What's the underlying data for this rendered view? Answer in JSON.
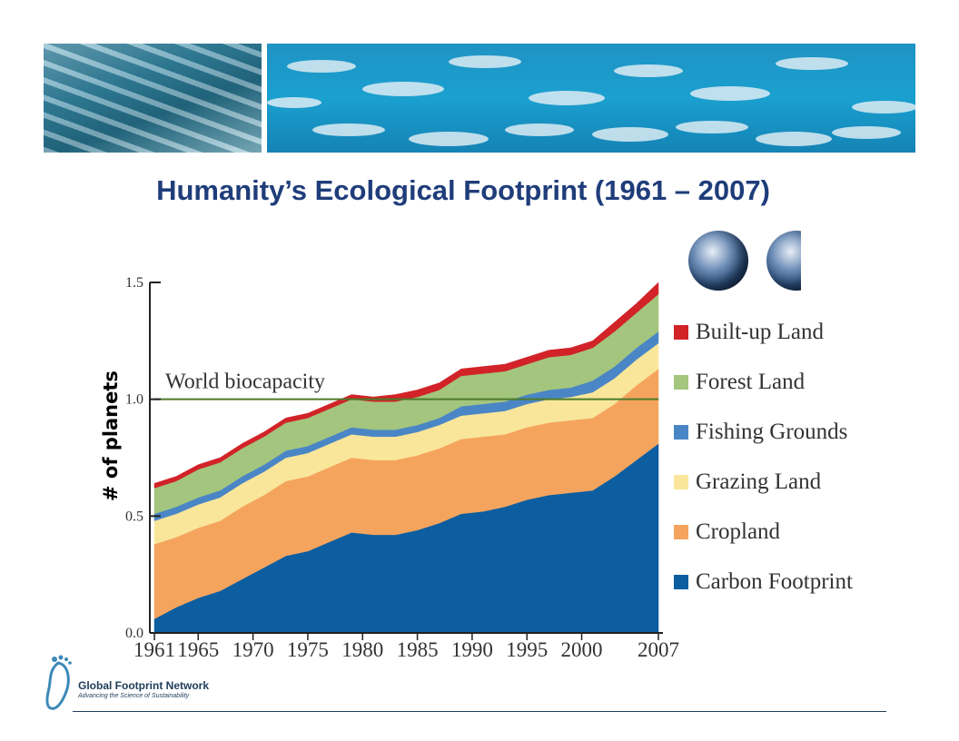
{
  "title": "Humanity’s Ecological Footprint (1961 – 2007)",
  "ylabel": "# of planets",
  "logo": {
    "name": "Global Footprint Network",
    "tagline": "Advancing the Science of Sustainability"
  },
  "chart_data": {
    "type": "area",
    "stacked": true,
    "years": [
      1961,
      1963,
      1965,
      1967,
      1969,
      1971,
      1973,
      1975,
      1977,
      1979,
      1981,
      1983,
      1985,
      1987,
      1989,
      1991,
      1993,
      1995,
      1997,
      1999,
      2001,
      2003,
      2005,
      2007
    ],
    "series": [
      {
        "name": "Carbon Footprint",
        "color": "#0c5ea0",
        "values": [
          0.06,
          0.11,
          0.15,
          0.18,
          0.23,
          0.28,
          0.33,
          0.35,
          0.39,
          0.43,
          0.42,
          0.42,
          0.44,
          0.47,
          0.51,
          0.52,
          0.54,
          0.57,
          0.59,
          0.6,
          0.61,
          0.67,
          0.74,
          0.81
        ]
      },
      {
        "name": "Cropland",
        "color": "#f5a45e",
        "values": [
          0.32,
          0.3,
          0.3,
          0.3,
          0.31,
          0.31,
          0.32,
          0.32,
          0.32,
          0.32,
          0.32,
          0.32,
          0.32,
          0.32,
          0.32,
          0.32,
          0.31,
          0.31,
          0.31,
          0.31,
          0.31,
          0.31,
          0.32,
          0.32
        ]
      },
      {
        "name": "Grazing Land",
        "color": "#f9e69a",
        "values": [
          0.1,
          0.1,
          0.1,
          0.1,
          0.1,
          0.1,
          0.1,
          0.1,
          0.1,
          0.1,
          0.1,
          0.1,
          0.1,
          0.1,
          0.1,
          0.1,
          0.1,
          0.1,
          0.1,
          0.1,
          0.11,
          0.11,
          0.11,
          0.11
        ]
      },
      {
        "name": "Fishing Grounds",
        "color": "#4a86c5",
        "values": [
          0.03,
          0.03,
          0.03,
          0.03,
          0.03,
          0.03,
          0.03,
          0.03,
          0.03,
          0.03,
          0.03,
          0.03,
          0.03,
          0.03,
          0.04,
          0.04,
          0.04,
          0.04,
          0.04,
          0.04,
          0.05,
          0.05,
          0.05,
          0.05
        ]
      },
      {
        "name": "Forest Land",
        "color": "#a3c57e",
        "values": [
          0.11,
          0.11,
          0.12,
          0.12,
          0.12,
          0.12,
          0.12,
          0.12,
          0.12,
          0.12,
          0.12,
          0.12,
          0.12,
          0.12,
          0.13,
          0.13,
          0.13,
          0.13,
          0.14,
          0.14,
          0.14,
          0.15,
          0.15,
          0.16
        ]
      },
      {
        "name": "Built-up Land",
        "color": "#d12328",
        "values": [
          0.02,
          0.02,
          0.02,
          0.02,
          0.02,
          0.02,
          0.02,
          0.02,
          0.02,
          0.02,
          0.02,
          0.03,
          0.03,
          0.03,
          0.03,
          0.03,
          0.03,
          0.03,
          0.03,
          0.03,
          0.03,
          0.04,
          0.04,
          0.05
        ]
      }
    ],
    "legend_order": [
      "Built-up Land",
      "Forest Land",
      "Fishing Grounds",
      "Grazing Land",
      "Cropland",
      "Carbon Footprint"
    ],
    "reference_line": {
      "label": "World biocapacity",
      "value": 1.0,
      "color": "#4d7a2a"
    },
    "yticks": [
      "0.0",
      "0.5",
      "1.0",
      "1.5"
    ],
    "ytick_values": [
      0.0,
      0.5,
      1.0,
      1.5
    ],
    "xticks": [
      "1961",
      "1965",
      "1970",
      "1975",
      "1980",
      "1985",
      "1990",
      "1995",
      "2000",
      "2007"
    ],
    "xtick_values": [
      1961,
      1965,
      1970,
      1975,
      1980,
      1985,
      1990,
      1995,
      2000,
      2007
    ],
    "ylim": [
      0,
      1.5
    ],
    "xlim": [
      1961,
      2007
    ],
    "legend_position": "right"
  }
}
